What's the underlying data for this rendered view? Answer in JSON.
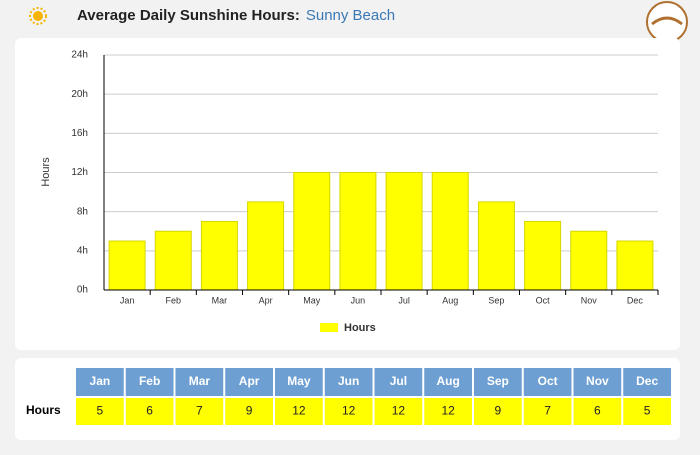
{
  "chart_data": {
    "type": "bar",
    "title": "Average Daily Sunshine Hours:",
    "location": "Sunny Beach",
    "y_label": "Hours",
    "categories": [
      "Jan",
      "Feb",
      "Mar",
      "Apr",
      "May",
      "Jun",
      "Jul",
      "Aug",
      "Sep",
      "Oct",
      "Nov",
      "Dec"
    ],
    "series": [
      {
        "name": "Hours",
        "color": "#ffff00",
        "values": [
          5,
          6,
          7,
          9,
          12,
          12,
          12,
          12,
          9,
          7,
          6,
          5
        ]
      }
    ],
    "ylim": [
      0,
      24
    ],
    "yticks": [
      {
        "value": 0,
        "label": "0h"
      },
      {
        "value": 4,
        "label": "4h"
      },
      {
        "value": 8,
        "label": "8h"
      },
      {
        "value": 12,
        "label": "12h"
      },
      {
        "value": 16,
        "label": "16h"
      },
      {
        "value": 20,
        "label": "20h"
      },
      {
        "value": 24,
        "label": "24h"
      }
    ],
    "grid": true,
    "legend": "bottom"
  }
}
